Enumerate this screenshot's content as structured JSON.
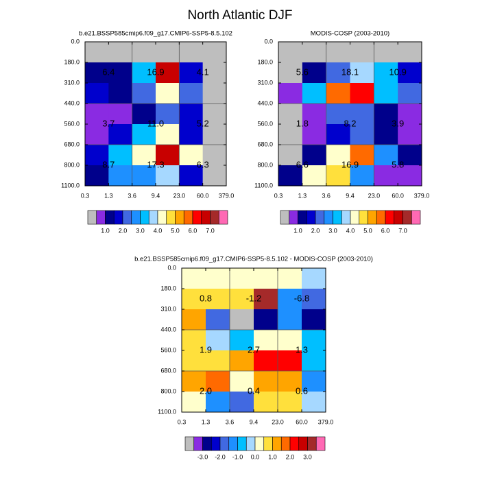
{
  "title": "North Atlantic DJF",
  "chart_data": [
    {
      "type": "heatmap",
      "title": "b.e21.BSSP585cmip6.f09_g17.CMIP6-SSP5-8.5.102",
      "xticks": [
        0.3,
        1.3,
        3.6,
        9.4,
        {
          "value": 23,
          "label": "23.0"
        },
        {
          "value": 60,
          "label": "60.0"
        },
        {
          "value": 379,
          "label": "379.0"
        }
      ],
      "yticks": [
        {
          "value": 0,
          "label": "0.0"
        },
        {
          "value": 180,
          "label": "180.0"
        },
        {
          "value": 310,
          "label": "310.0"
        },
        {
          "value": 440,
          "label": "440.0"
        },
        {
          "value": 560,
          "label": "560.0"
        },
        {
          "value": 680,
          "label": "680.0"
        },
        {
          "value": 800,
          "label": "800.0"
        },
        {
          "value": 1100,
          "label": "1100.0"
        }
      ],
      "values": [
        [
          0.25,
          0.25,
          0.25,
          0.25,
          0.25,
          0.25
        ],
        [
          1.25,
          1.25,
          3.25,
          6.75,
          1.75,
          0.25
        ],
        [
          1.75,
          1.25,
          2.25,
          4.25,
          2.25,
          0.25
        ],
        [
          0.75,
          0.75,
          1.25,
          2.25,
          1.75,
          0.25
        ],
        [
          0.75,
          1.75,
          3.25,
          4.25,
          1.75,
          0.25
        ],
        [
          1.75,
          3.25,
          4.25,
          6.75,
          4.25,
          0.25
        ],
        [
          1.25,
          2.75,
          2.75,
          3.75,
          1.75,
          0.25
        ]
      ],
      "group_values": [
        [
          6.4,
          16.9,
          4.1
        ],
        [
          3.7,
          11,
          5.2
        ],
        [
          8.7,
          17.3,
          6.3
        ]
      ],
      "group_labels": [
        [
          "6.4",
          "16.9",
          "4.1"
        ],
        [
          "3.7",
          "11.0",
          "5.2"
        ],
        [
          "8.7",
          "17.3",
          "6.3"
        ]
      ],
      "colorbar": {
        "levels": [
          0.5,
          1,
          1.5,
          2,
          2.5,
          3,
          3.5,
          4,
          4.5,
          5,
          5.5,
          6,
          6.5,
          7,
          7.5
        ],
        "colors": [
          "#bebebe",
          "#8a2be2",
          "#00008b",
          "#0000cd",
          "#4169e1",
          "#1e90ff",
          "#00bfff",
          "#a6d8ff",
          "#ffffcc",
          "#ffe03c",
          "#ffa500",
          "#ff6a00",
          "#ff0000",
          "#c80000",
          "#a52a2a",
          "#ff69b4"
        ],
        "ticks": [
          {
            "value": 1,
            "label": "1.0"
          },
          {
            "value": 2,
            "label": "2.0"
          },
          {
            "value": 3,
            "label": "3.0"
          },
          {
            "value": 4,
            "label": "4.0"
          },
          {
            "value": 5,
            "label": "5.0"
          },
          {
            "value": 6,
            "label": "6.0"
          },
          {
            "value": 7,
            "label": "7.0"
          }
        ]
      }
    },
    {
      "type": "heatmap",
      "title": "MODIS-COSP (2003-2010)",
      "xticks": [
        0.3,
        1.3,
        3.6,
        9.4,
        {
          "value": 23,
          "label": "23.0"
        },
        {
          "value": 60,
          "label": "60.0"
        },
        {
          "value": 379,
          "label": "379.0"
        }
      ],
      "yticks": [
        {
          "value": 0,
          "label": "0.0"
        },
        {
          "value": 180,
          "label": "180.0"
        },
        {
          "value": 310,
          "label": "310.0"
        },
        {
          "value": 440,
          "label": "440.0"
        },
        {
          "value": 560,
          "label": "560.0"
        },
        {
          "value": 680,
          "label": "680.0"
        },
        {
          "value": 800,
          "label": "800.0"
        },
        {
          "value": 1100,
          "label": "1100.0"
        }
      ],
      "values": [
        [
          0.25,
          0.25,
          0.25,
          0.25,
          0.25,
          0.25
        ],
        [
          0.25,
          1.25,
          2.25,
          3.75,
          3.25,
          1.75
        ],
        [
          0.75,
          3.25,
          5.75,
          6.25,
          3.25,
          2.25
        ],
        [
          0.25,
          0.75,
          2.25,
          2.25,
          1.25,
          0.75
        ],
        [
          0.25,
          0.75,
          1.75,
          2.25,
          1.25,
          0.75
        ],
        [
          0.25,
          1.25,
          4.25,
          5.75,
          2.75,
          1.25
        ],
        [
          1.25,
          4.25,
          4.75,
          2.75,
          0.75,
          0.75
        ]
      ],
      "group_values": [
        [
          5.6,
          18.1,
          10.9
        ],
        [
          1.8,
          8.2,
          3.9
        ],
        [
          6.6,
          16.9,
          5.8
        ]
      ],
      "group_labels": [
        [
          "5.6",
          "18.1",
          "10.9"
        ],
        [
          "1.8",
          "8.2",
          "3.9"
        ],
        [
          "6.6",
          "16.9",
          "5.8"
        ]
      ],
      "colorbar": {
        "levels": [
          0.5,
          1,
          1.5,
          2,
          2.5,
          3,
          3.5,
          4,
          4.5,
          5,
          5.5,
          6,
          6.5,
          7,
          7.5
        ],
        "colors": [
          "#bebebe",
          "#8a2be2",
          "#00008b",
          "#0000cd",
          "#4169e1",
          "#1e90ff",
          "#00bfff",
          "#a6d8ff",
          "#ffffcc",
          "#ffe03c",
          "#ffa500",
          "#ff6a00",
          "#ff0000",
          "#c80000",
          "#a52a2a",
          "#ff69b4"
        ],
        "ticks": [
          {
            "value": 1,
            "label": "1.0"
          },
          {
            "value": 2,
            "label": "2.0"
          },
          {
            "value": 3,
            "label": "3.0"
          },
          {
            "value": 4,
            "label": "4.0"
          },
          {
            "value": 5,
            "label": "5.0"
          },
          {
            "value": 6,
            "label": "6.0"
          },
          {
            "value": 7,
            "label": "7.0"
          }
        ]
      }
    },
    {
      "type": "heatmap",
      "title": "b.e21.BSSP585cmip6.f09_g17.CMIP6-SSP5-8.5.102 - MODIS-COSP (2003-2010)",
      "xticks": [
        0.3,
        1.3,
        3.6,
        9.4,
        {
          "value": 23,
          "label": "23.0"
        },
        {
          "value": 60,
          "label": "60.0"
        },
        {
          "value": 379,
          "label": "379.0"
        }
      ],
      "yticks": [
        {
          "value": 0,
          "label": "0.0"
        },
        {
          "value": 180,
          "label": "180.0"
        },
        {
          "value": 310,
          "label": "310.0"
        },
        {
          "value": 440,
          "label": "440.0"
        },
        {
          "value": 560,
          "label": "560.0"
        },
        {
          "value": 680,
          "label": "680.0"
        },
        {
          "value": 800,
          "label": "800.0"
        },
        {
          "value": 1100,
          "label": "1100.0"
        }
      ],
      "values": [
        [
          0.25,
          0.25,
          0.25,
          0.25,
          0.25,
          -0.25
        ],
        [
          0.75,
          0.75,
          0.75,
          3.25,
          -1.25,
          -1.75
        ],
        [
          1.25,
          -1.75,
          -3.75,
          -2.75,
          -1.25,
          -2.75
        ],
        [
          0.75,
          -0.25,
          -0.75,
          0.25,
          0.25,
          -0.75
        ],
        [
          0.75,
          0.75,
          1.25,
          2.25,
          2.25,
          -0.75
        ],
        [
          1.25,
          1.75,
          0.25,
          1.25,
          1.25,
          -1.25
        ],
        [
          0.25,
          -1.25,
          -1.75,
          0.75,
          0.75,
          -0.25
        ]
      ],
      "group_values": [
        [
          0.8,
          -1.2,
          -6.8
        ],
        [
          1.9,
          2.7,
          1.3
        ],
        [
          2,
          0.4,
          0.6
        ]
      ],
      "group_labels": [
        [
          "0.8",
          "-1.2",
          "-6.8"
        ],
        [
          "1.9",
          "2.7",
          "1.3"
        ],
        [
          "2.0",
          "0.4",
          "0.6"
        ]
      ],
      "colorbar": {
        "levels": [
          -3.5,
          -3,
          -2.5,
          -2,
          -1.5,
          -1,
          -0.5,
          0,
          0.5,
          1,
          1.5,
          2,
          2.5,
          3,
          3.5
        ],
        "colors": [
          "#bebebe",
          "#8a2be2",
          "#00008b",
          "#0000cd",
          "#4169e1",
          "#1e90ff",
          "#00bfff",
          "#a6d8ff",
          "#ffffcc",
          "#ffe03c",
          "#ffa500",
          "#ff6a00",
          "#ff0000",
          "#c80000",
          "#a52a2a",
          "#ff69b4"
        ],
        "ticks": [
          {
            "value": -3,
            "label": "-3.0"
          },
          {
            "value": -2,
            "label": "-2.0"
          },
          {
            "value": -1,
            "label": "-1.0"
          },
          {
            "value": 0,
            "label": "0.0"
          },
          {
            "value": 1,
            "label": "1.0"
          },
          {
            "value": 2,
            "label": "2.0"
          },
          {
            "value": 3,
            "label": "3.0"
          }
        ]
      }
    }
  ]
}
